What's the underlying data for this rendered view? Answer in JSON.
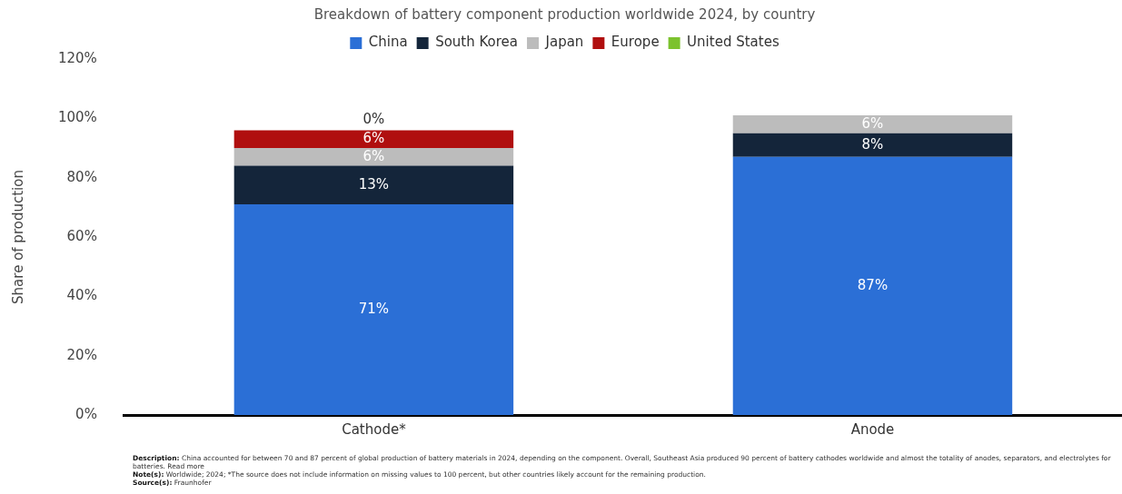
{
  "chart_data": {
    "type": "bar",
    "stacked": true,
    "title": "Breakdown of battery component production worldwide 2024, by country",
    "ylabel": "Share of production",
    "categories": [
      "Cathode*",
      "Anode"
    ],
    "series": [
      {
        "name": "China",
        "color": "#2b6fd6",
        "values": [
          71,
          87
        ],
        "value_labels": [
          "71%",
          "87%"
        ]
      },
      {
        "name": "South Korea",
        "color": "#14253a",
        "values": [
          13,
          8
        ],
        "value_labels": [
          "13%",
          "8%"
        ]
      },
      {
        "name": "Japan",
        "color": "#bcbcbc",
        "values": [
          6,
          6
        ],
        "value_labels": [
          "6%",
          "6%"
        ]
      },
      {
        "name": "Europe",
        "color": "#b00f0f",
        "values": [
          6,
          0
        ],
        "value_labels": [
          "6%",
          null
        ]
      },
      {
        "name": "United States",
        "color": "#7cc22e",
        "values": [
          0,
          0
        ],
        "value_labels": [
          "0%",
          null
        ]
      }
    ],
    "ylim": [
      0,
      120
    ],
    "yticks": [
      {
        "value": 0,
        "label": "0%"
      },
      {
        "value": 20,
        "label": "20%"
      },
      {
        "value": 40,
        "label": "40%"
      },
      {
        "value": 60,
        "label": "60%"
      },
      {
        "value": 80,
        "label": "80%"
      },
      {
        "value": 100,
        "label": "100%"
      },
      {
        "value": 120,
        "label": "120%"
      }
    ],
    "grid": false,
    "legend": "top",
    "annotations": [
      "Description: China accounted for between 70 and 87 percent of global production of battery materials in 2024, depending on the component. Overall, Southeast Asia produced 90 percent of battery cathodes worldwide and almost the totality of anodes, separators, and electrolytes for batteries. Read more",
      "Note(s): Worldwide; 2024; *The source does not include information on missing values to 100 percent, but other countries likely account for the remaining production.",
      "Source(s): Fraunhofer"
    ]
  }
}
